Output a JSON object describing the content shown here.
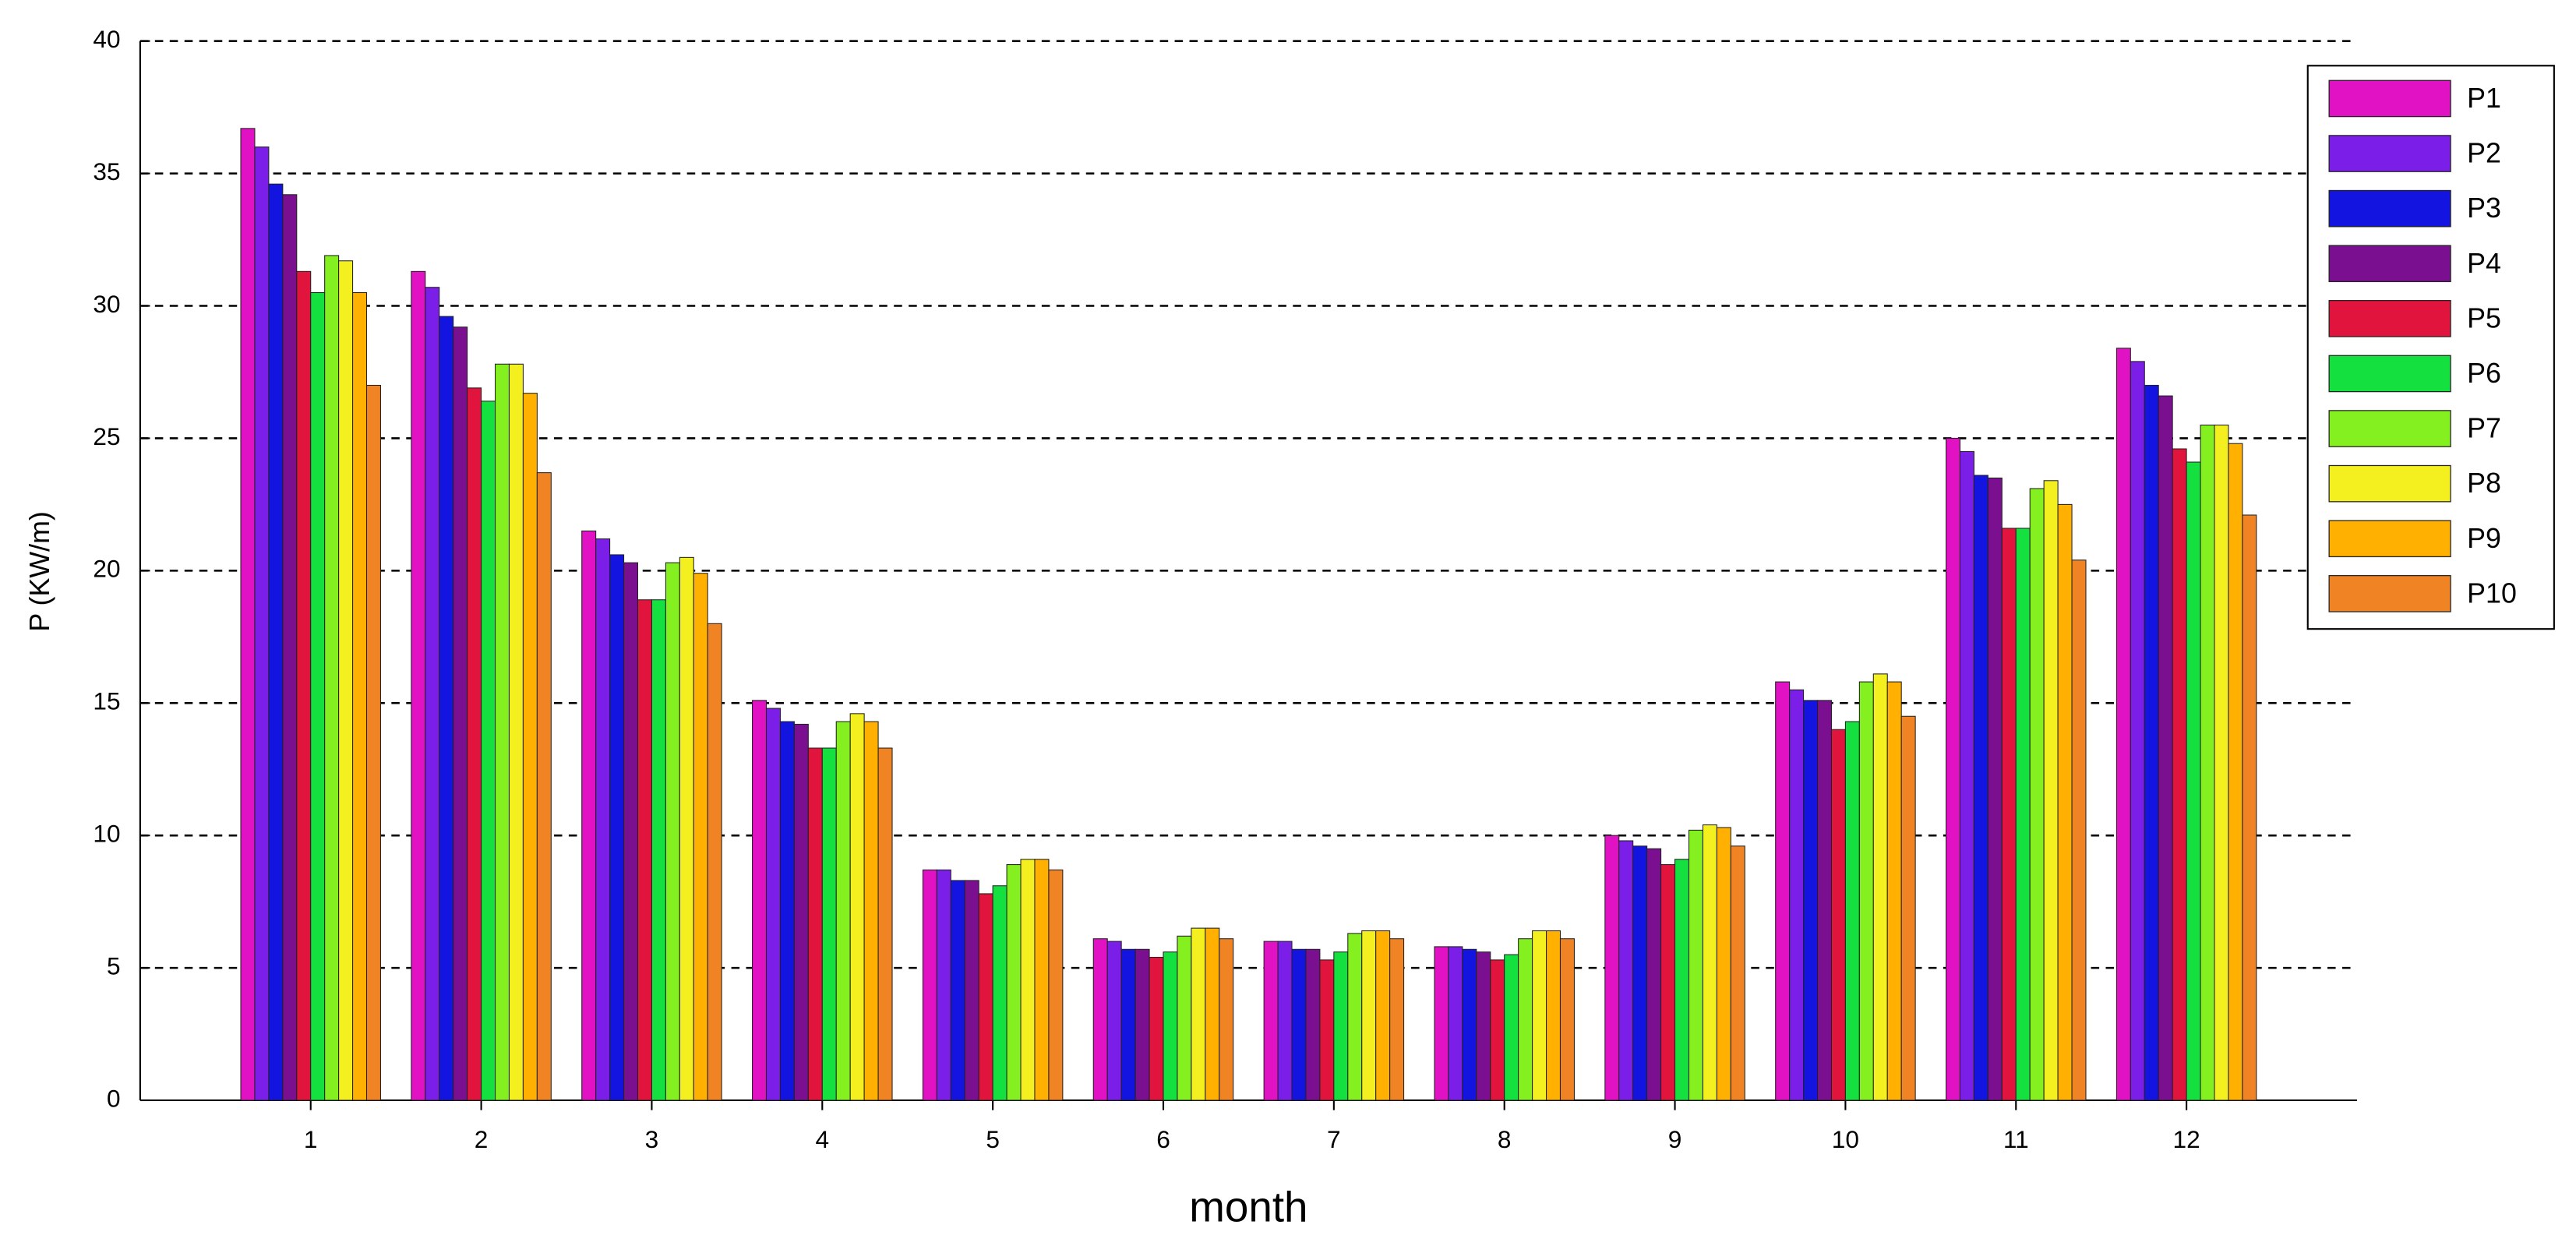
{
  "chart_data": {
    "type": "bar",
    "x_label": "month",
    "y_label": "P (KW/m)",
    "categories": [
      "1",
      "2",
      "3",
      "4",
      "5",
      "6",
      "7",
      "8",
      "9",
      "10",
      "11",
      "12"
    ],
    "ylim": [
      0,
      40
    ],
    "yticks": [
      0,
      5,
      10,
      15,
      20,
      25,
      30,
      35,
      40
    ],
    "grid": true,
    "legend": "upper-right",
    "series": [
      {
        "name": "P1",
        "color": "#e012c4",
        "values": [
          36.7,
          31.3,
          21.5,
          15.1,
          8.7,
          6.1,
          6.0,
          5.8,
          10.0,
          15.8,
          25.0,
          28.4
        ]
      },
      {
        "name": "P2",
        "color": "#7a1ee8",
        "values": [
          36.0,
          30.7,
          21.2,
          14.8,
          8.7,
          6.0,
          6.0,
          5.8,
          9.8,
          15.5,
          24.5,
          27.9
        ]
      },
      {
        "name": "P3",
        "color": "#1414e0",
        "values": [
          34.6,
          29.6,
          20.6,
          14.3,
          8.3,
          5.7,
          5.7,
          5.7,
          9.6,
          15.1,
          23.6,
          27.0
        ]
      },
      {
        "name": "P4",
        "color": "#7a1090",
        "values": [
          34.2,
          29.2,
          20.3,
          14.2,
          8.3,
          5.7,
          5.7,
          5.6,
          9.5,
          15.1,
          23.5,
          26.6
        ]
      },
      {
        "name": "P5",
        "color": "#e0143c",
        "values": [
          31.3,
          26.9,
          18.9,
          13.3,
          7.8,
          5.4,
          5.3,
          5.3,
          8.9,
          14.0,
          21.6,
          24.6
        ]
      },
      {
        "name": "P6",
        "color": "#14e040",
        "values": [
          30.5,
          26.4,
          18.9,
          13.3,
          8.1,
          5.6,
          5.6,
          5.5,
          9.1,
          14.3,
          21.6,
          24.1
        ]
      },
      {
        "name": "P7",
        "color": "#84f020",
        "values": [
          31.9,
          27.8,
          20.3,
          14.3,
          8.9,
          6.2,
          6.3,
          6.1,
          10.2,
          15.8,
          23.1,
          25.5
        ]
      },
      {
        "name": "P8",
        "color": "#f4f020",
        "values": [
          31.7,
          27.8,
          20.5,
          14.6,
          9.1,
          6.5,
          6.4,
          6.4,
          10.4,
          16.1,
          23.4,
          25.5
        ]
      },
      {
        "name": "P9",
        "color": "#ffb000",
        "values": [
          30.5,
          26.7,
          19.9,
          14.3,
          9.1,
          6.5,
          6.4,
          6.4,
          10.3,
          15.8,
          22.5,
          24.8
        ]
      },
      {
        "name": "P10",
        "color": "#f08424",
        "values": [
          27.0,
          23.7,
          18.0,
          13.3,
          8.7,
          6.1,
          6.1,
          6.1,
          9.6,
          14.5,
          20.4,
          22.1
        ]
      }
    ]
  }
}
